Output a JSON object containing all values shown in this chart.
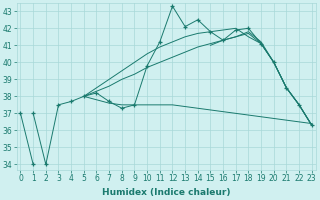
{
  "x_all": [
    0,
    1,
    2,
    3,
    4,
    5,
    6,
    7,
    8,
    9,
    10,
    11,
    12,
    13,
    14,
    15,
    16,
    17,
    18,
    19,
    20,
    21,
    22,
    23
  ],
  "line_spike": [
    37,
    34,
    37.5,
    37.7,
    38.0,
    38.2,
    37.7,
    37.3,
    37.5,
    39.8,
    41.2,
    43.3,
    42.1,
    42.5,
    41.8,
    41.3,
    41.9,
    42.0,
    41.1,
    40.0,
    38.5,
    37.5,
    36.3
  ],
  "x_spike_start": 1,
  "line_upper": [
    41.0,
    41.3,
    41.5,
    41.7,
    41.1,
    40.0,
    38.5,
    37.5,
    36.3
  ],
  "x_upper_start": 15,
  "line_mid_up": [
    38.0,
    38.5,
    39.0,
    39.5,
    40.0,
    40.5,
    40.9,
    41.2,
    41.5,
    41.7,
    41.8,
    41.9,
    42.0,
    41.5,
    41.1,
    40.0,
    38.5,
    37.5,
    36.3
  ],
  "x_mid_start": 5,
  "line_flat": [
    38.0,
    37.8,
    37.6,
    37.5,
    37.5,
    37.5,
    37.5,
    37.5,
    37.4,
    37.3,
    37.2,
    37.1,
    37.0,
    36.9,
    36.8,
    36.7,
    36.6,
    36.5,
    36.4
  ],
  "x_flat_start": 5,
  "line_low_rise": [
    38.0,
    38.3,
    38.6,
    39.0,
    39.3,
    39.7,
    40.0,
    40.3,
    40.6,
    40.9,
    41.1,
    41.3,
    41.5,
    41.8,
    41.2,
    40.0,
    38.5,
    37.5,
    36.3
  ],
  "x_low_start": 5,
  "color": "#1a7a6e",
  "bg_color": "#d0f0f0",
  "grid_color": "#a8d8d8",
  "xlim": [
    -0.3,
    23.3
  ],
  "ylim": [
    33.7,
    43.5
  ],
  "yticks": [
    34,
    35,
    36,
    37,
    38,
    39,
    40,
    41,
    42,
    43
  ],
  "xticks": [
    0,
    1,
    2,
    3,
    4,
    5,
    6,
    7,
    8,
    9,
    10,
    11,
    12,
    13,
    14,
    15,
    16,
    17,
    18,
    19,
    20,
    21,
    22,
    23
  ],
  "xlabel": "Humidex (Indice chaleur)",
  "label_fontsize": 6.5,
  "tick_fontsize": 5.5
}
